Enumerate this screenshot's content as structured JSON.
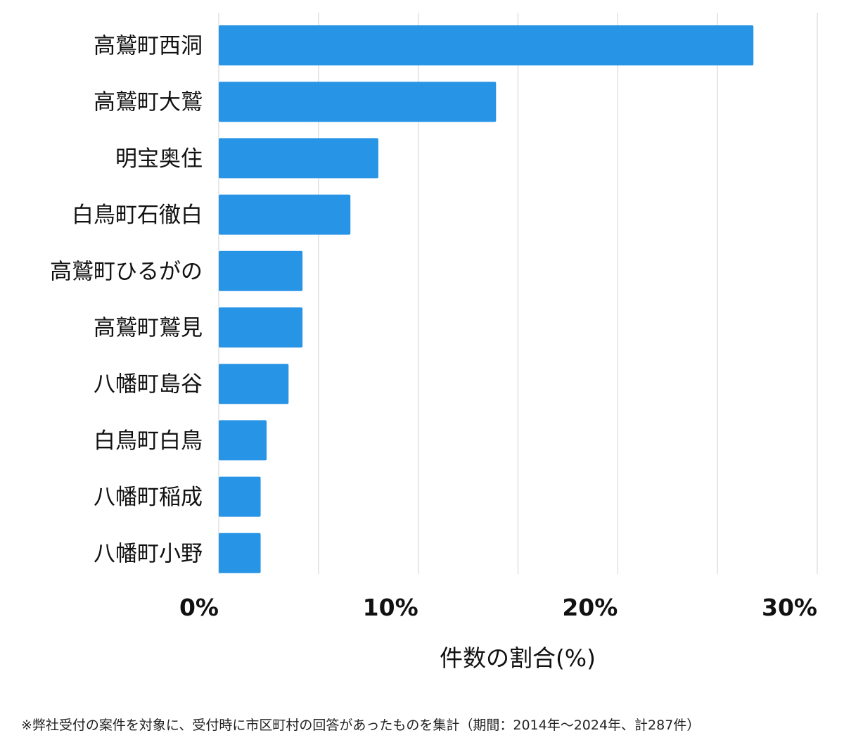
{
  "chart_data": {
    "type": "bar",
    "orientation": "horizontal",
    "categories": [
      "高鷲町西洞",
      "高鷲町大鷲",
      "明宝奥住",
      "白鳥町石徹白",
      "高鷲町ひるがの",
      "高鷲町鷲見",
      "八幡町島谷",
      "白鳥町白鳥",
      "八幡町稲成",
      "八幡町小野"
    ],
    "values": [
      26.8,
      13.9,
      8.0,
      6.6,
      4.2,
      4.2,
      3.5,
      2.4,
      2.1,
      2.1
    ],
    "xlabel": "件数の割合(%)",
    "ylabel": "",
    "xlim": [
      0,
      30
    ],
    "xticks": [
      {
        "value": 0,
        "label": "0%"
      },
      {
        "value": 10,
        "label": "10%"
      },
      {
        "value": 20,
        "label": "20%"
      },
      {
        "value": 30,
        "label": "30%"
      }
    ],
    "grid": true,
    "bar_color": "#2894e6",
    "grid_color": "#d9d9d9"
  },
  "footnote": "※弊社受付の案件を対象に、受付時に市区町村の回答があったものを集計（期間：2014年～2024年、計287件）"
}
